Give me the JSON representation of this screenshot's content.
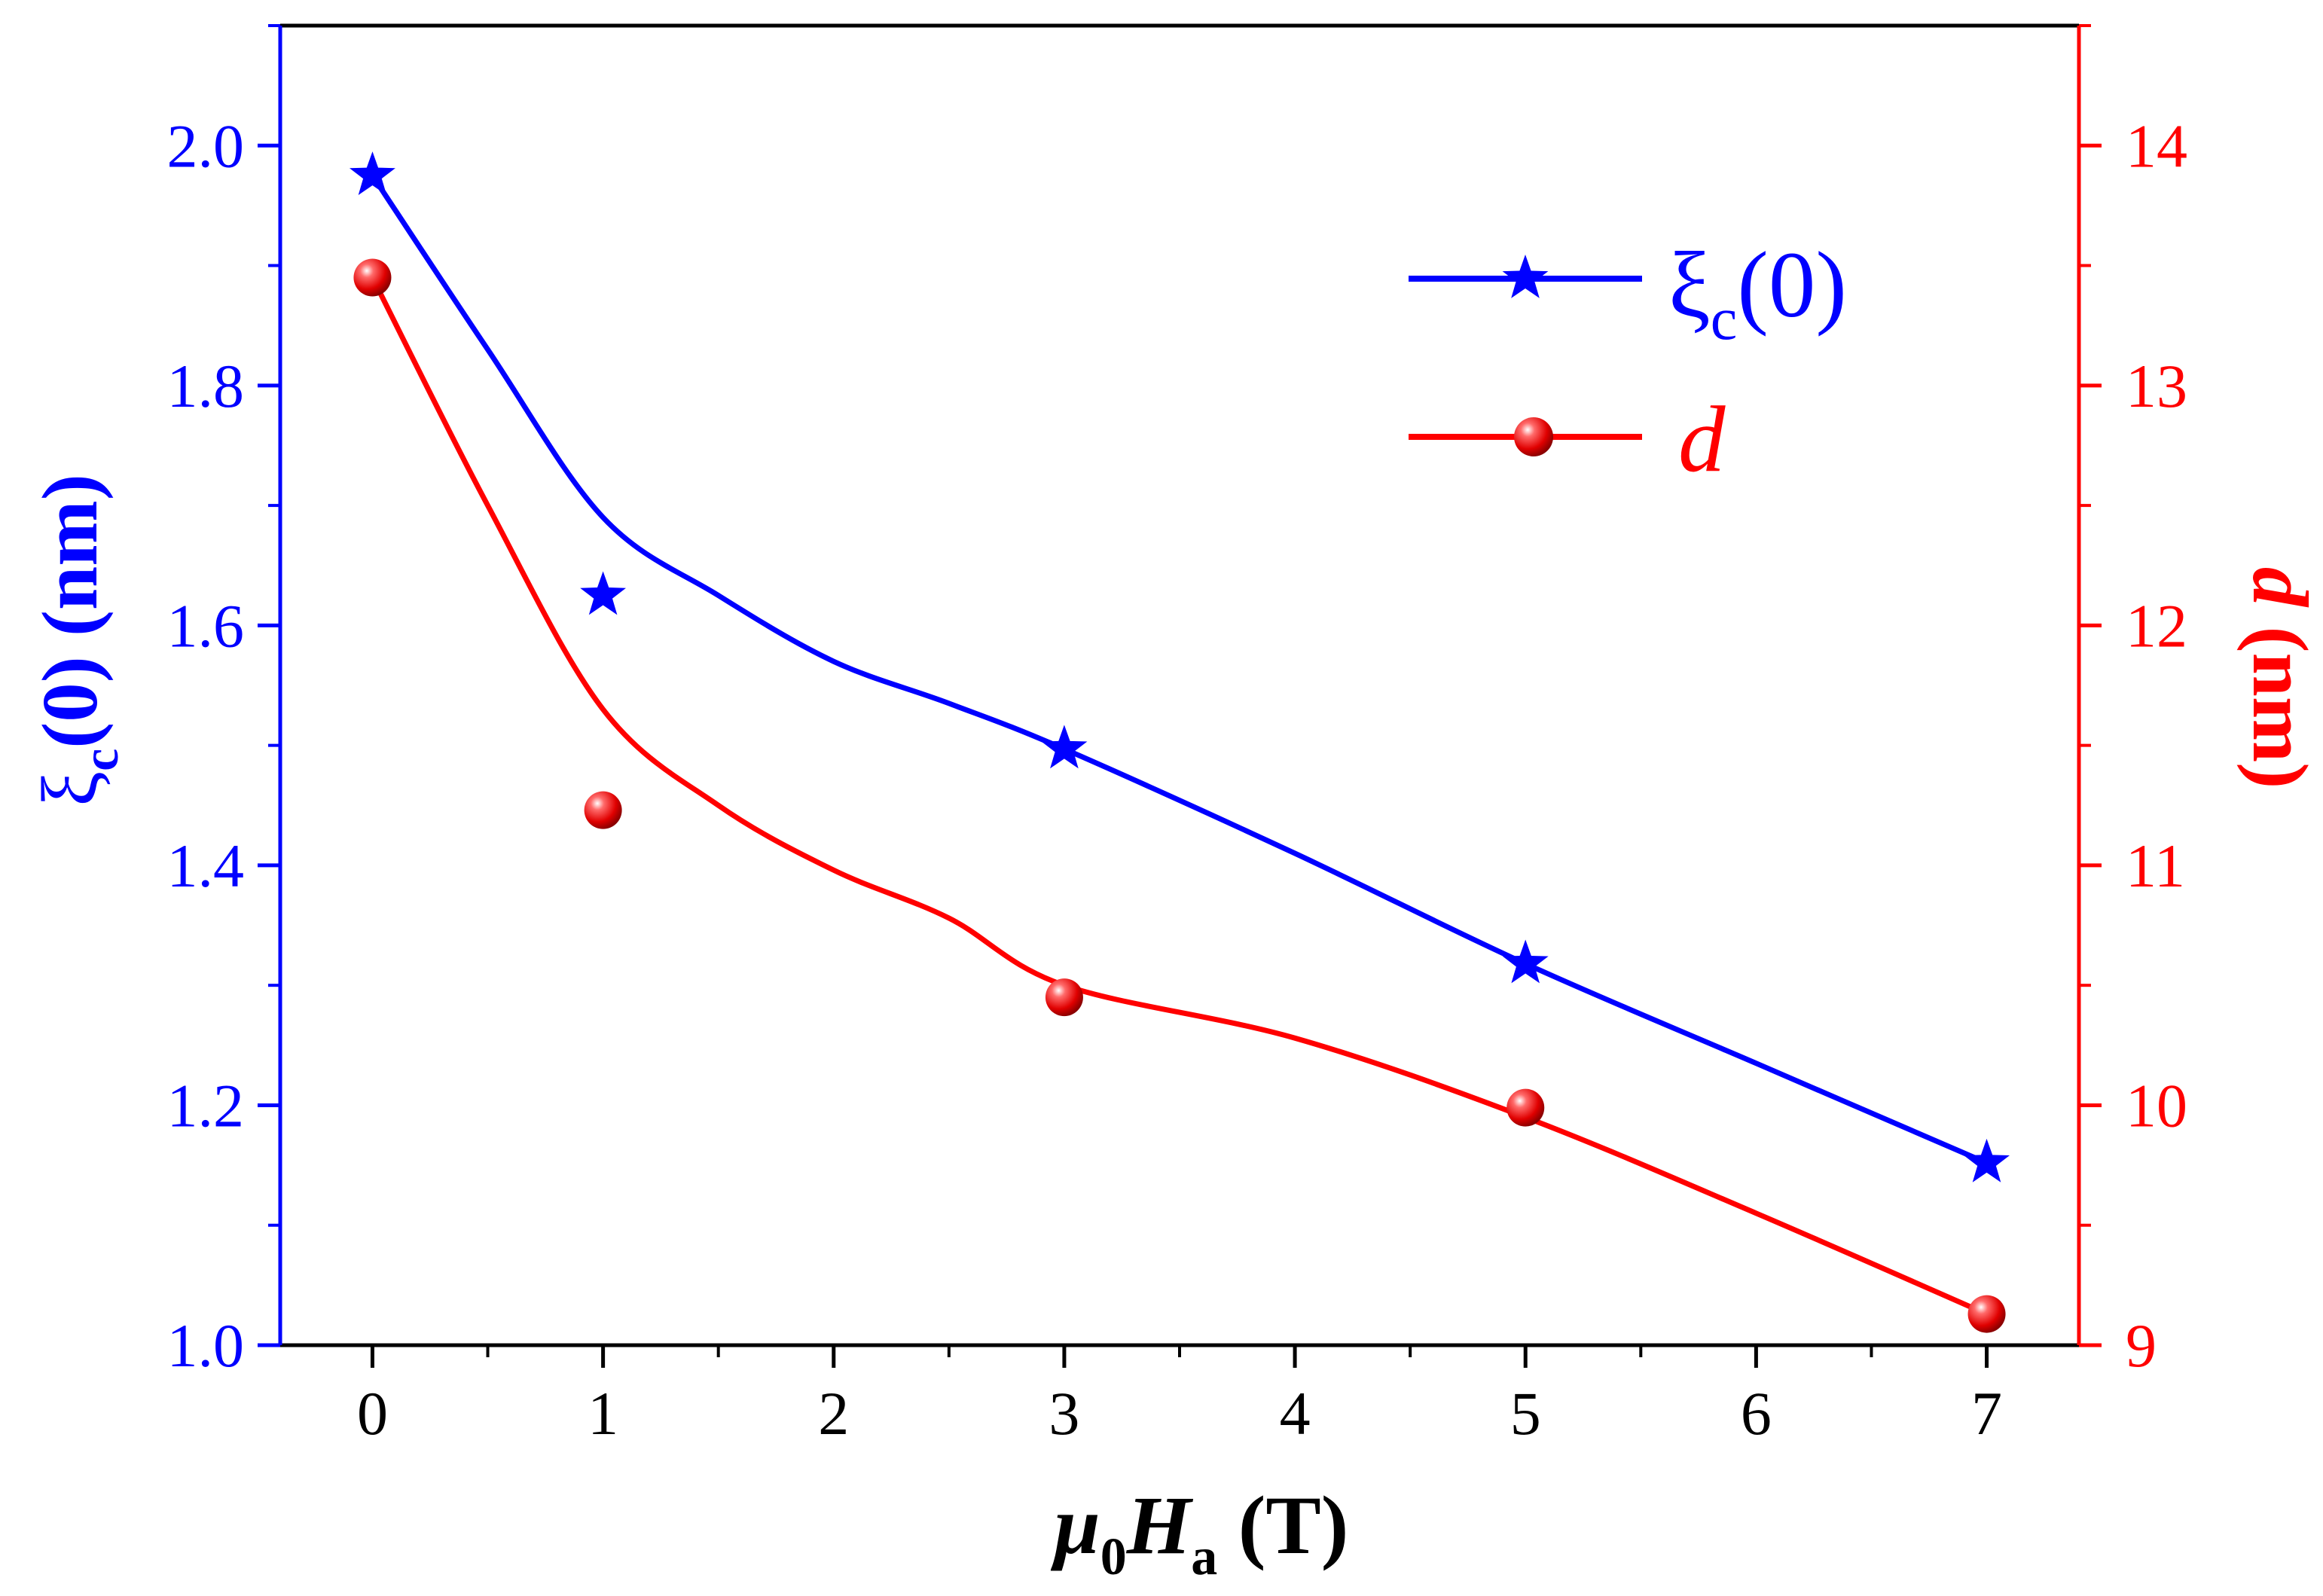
{
  "chart_data": {
    "type": "line",
    "x": [
      0,
      1,
      3,
      5,
      7
    ],
    "xlim": [
      -0.4,
      7.4
    ],
    "x_ticks": [
      "0",
      "1",
      "2",
      "3",
      "4",
      "5",
      "6",
      "7"
    ],
    "xlabel": {
      "mu": "μ",
      "sub0": "0",
      "H": "H",
      "suba": "a",
      "unit": " (T)"
    },
    "y_left": {
      "lim": [
        1.0,
        2.1
      ],
      "ticks": [
        "1.0",
        "1.2",
        "1.4",
        "1.6",
        "1.8",
        "2.0"
      ],
      "label": {
        "xi": "ξ",
        "sub": "c",
        "rest": "(0)   (nm)"
      },
      "color": "#0000ff"
    },
    "y_right": {
      "lim": [
        9,
        14.5
      ],
      "ticks": [
        "9",
        "10",
        "11",
        "12",
        "13",
        "14"
      ],
      "label": {
        "d": "d",
        "rest": " (nm)"
      },
      "color": "#ff0000"
    },
    "series": [
      {
        "name": "ξc(0)",
        "axis": "left",
        "color": "#0000ff",
        "marker": "star",
        "values": [
          1.975,
          1.625,
          1.497,
          1.318,
          1.152
        ],
        "fit": [
          [
            0,
            1.975
          ],
          [
            0.5,
            1.83
          ],
          [
            1,
            1.69
          ],
          [
            1.5,
            1.625
          ],
          [
            2,
            1.57
          ],
          [
            2.5,
            1.535
          ],
          [
            3,
            1.497
          ],
          [
            4,
            1.41
          ],
          [
            5,
            1.318
          ],
          [
            6,
            1.235
          ],
          [
            7,
            1.152
          ]
        ]
      },
      {
        "name": "d",
        "axis": "right",
        "color": "#ff0000",
        "marker": "sphere",
        "values": [
          13.45,
          11.23,
          10.45,
          9.99,
          9.13
        ],
        "fit": [
          [
            0,
            13.45
          ],
          [
            0.5,
            12.5
          ],
          [
            1,
            11.65
          ],
          [
            1.5,
            11.25
          ],
          [
            2,
            10.98
          ],
          [
            2.5,
            10.78
          ],
          [
            3,
            10.5
          ],
          [
            4,
            10.28
          ],
          [
            5,
            9.95
          ],
          [
            6,
            9.55
          ],
          [
            7,
            9.13
          ]
        ]
      }
    ],
    "legend": {
      "position": "top-right",
      "xi_label": {
        "xi": "ξ",
        "sub": "c",
        "rest": "(0)"
      },
      "d_label": "d"
    },
    "grid": false
  }
}
